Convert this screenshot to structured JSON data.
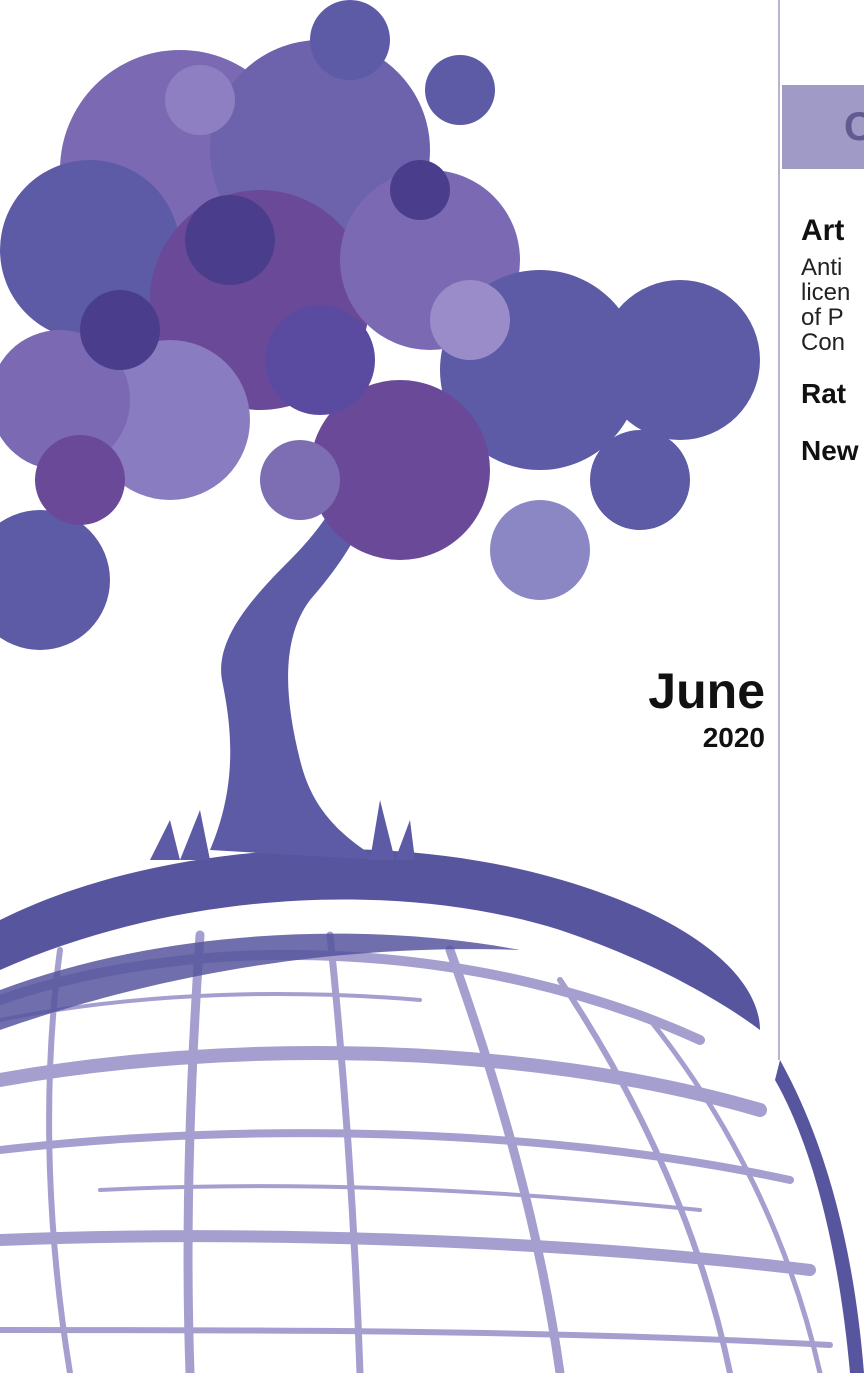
{
  "cover": {
    "month": "June",
    "year": "2020"
  },
  "sidebar": {
    "heading": "C",
    "items": [
      {
        "title": "Art",
        "lines": [
          "Anti",
          "licen",
          "of P",
          "Con"
        ]
      },
      {
        "title": "Rat"
      },
      {
        "title": "New"
      }
    ]
  },
  "colors": {
    "tree_dark": "#5d5aa6",
    "tree_mid": "#7b6ab3",
    "tree_purple": "#6a4a98",
    "globe_dark": "#57559e",
    "globe_light": "#a49fcf",
    "sidebar_bar": "#9f9ac6",
    "divider": "#b8b3cf"
  },
  "illustration": "tree-on-globe-illustration"
}
